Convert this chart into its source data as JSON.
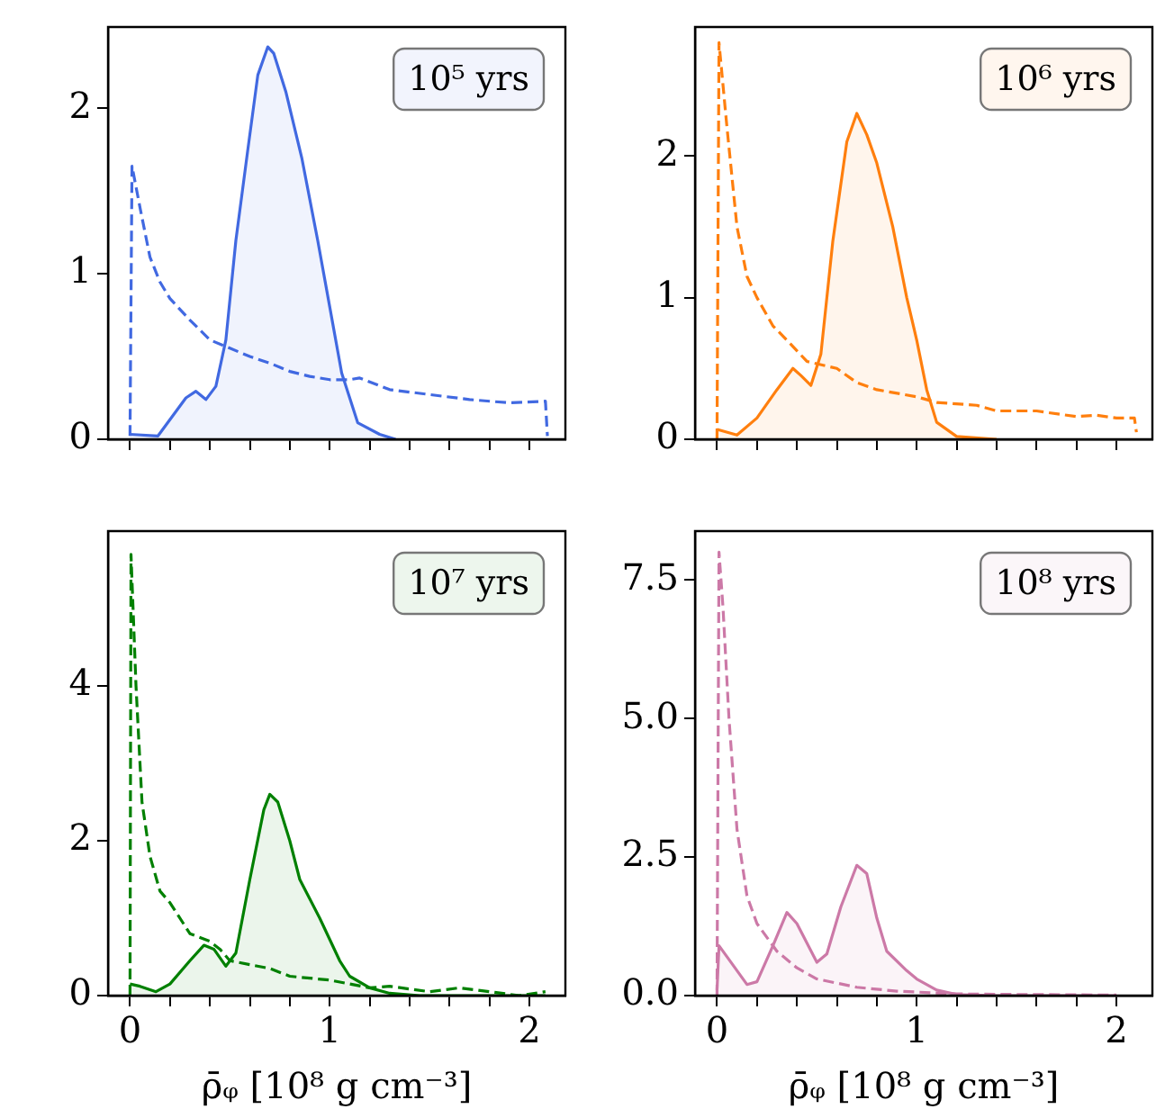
{
  "chart_data": [
    {
      "type": "area",
      "xlim": [
        -0.11,
        2.18
      ],
      "xticks": [
        0,
        {
          "value": 0.2,
          "label": null
        },
        {
          "value": 0.4,
          "label": null
        },
        {
          "value": 0.6,
          "label": null
        },
        {
          "value": 0.8,
          "label": null
        },
        1,
        {
          "value": 1.2,
          "label": null
        },
        {
          "value": 1.4,
          "label": null
        },
        {
          "value": 1.6,
          "label": null
        },
        {
          "value": 1.8,
          "label": null
        },
        2
      ],
      "ylim": [
        0,
        2.49
      ],
      "yticks": [
        0,
        1,
        2
      ],
      "tick_labels": "y",
      "annotations": [
        "10⁵ yrs"
      ],
      "series": [
        {
          "color": "#4169e1",
          "x": [
            0,
            0.14,
            0.28,
            0.33,
            0.38,
            0.43,
            0.48,
            0.53,
            0.59,
            0.64,
            0.69,
            0.72,
            0.78,
            0.86,
            0.94,
            1.0,
            1.06,
            1.14,
            1.25,
            1.33
          ],
          "values": [
            0.03,
            0.02,
            0.25,
            0.29,
            0.24,
            0.32,
            0.6,
            1.2,
            1.75,
            2.2,
            2.37,
            2.33,
            2.1,
            1.7,
            1.2,
            0.8,
            0.4,
            0.1,
            0.03,
            0.0
          ]
        },
        {
          "type": "line",
          "line_style": "dashed",
          "color": "#4169e1",
          "x": [
            0,
            0.01,
            0.05,
            0.1,
            0.15,
            0.2,
            0.3,
            0.4,
            0.5,
            0.6,
            0.7,
            0.8,
            0.9,
            1.0,
            1.1,
            1.15,
            1.3,
            1.5,
            1.7,
            1.9,
            2.08,
            2.09
          ],
          "values": [
            0.02,
            1.65,
            1.4,
            1.1,
            0.95,
            0.85,
            0.72,
            0.6,
            0.55,
            0.5,
            0.46,
            0.41,
            0.38,
            0.36,
            0.36,
            0.37,
            0.3,
            0.27,
            0.24,
            0.22,
            0.23,
            0.02
          ]
        }
      ]
    },
    {
      "type": "area",
      "xlim": [
        -0.11,
        2.18
      ],
      "xticks": [
        0,
        {
          "value": 0.2,
          "label": null
        },
        {
          "value": 0.4,
          "label": null
        },
        {
          "value": 0.6,
          "label": null
        },
        {
          "value": 0.8,
          "label": null
        },
        1,
        {
          "value": 1.2,
          "label": null
        },
        {
          "value": 1.4,
          "label": null
        },
        {
          "value": 1.6,
          "label": null
        },
        {
          "value": 1.8,
          "label": null
        },
        2
      ],
      "ylim": [
        0,
        2.91
      ],
      "yticks": [
        0,
        1,
        2
      ],
      "tick_labels": "y",
      "annotations": [
        "10⁶ yrs"
      ],
      "series": [
        {
          "color": "#ff7f0e",
          "x": [
            0,
            0.1,
            0.2,
            0.3,
            0.38,
            0.42,
            0.47,
            0.52,
            0.58,
            0.65,
            0.7,
            0.75,
            0.8,
            0.88,
            0.95,
            1.0,
            1.05,
            1.1,
            1.2,
            1.4
          ],
          "values": [
            0.07,
            0.03,
            0.15,
            0.35,
            0.5,
            0.45,
            0.38,
            0.6,
            1.4,
            2.1,
            2.3,
            2.15,
            1.95,
            1.5,
            1.0,
            0.7,
            0.35,
            0.12,
            0.02,
            0.0
          ]
        },
        {
          "type": "line",
          "line_style": "dashed",
          "color": "#ff7f0e",
          "x": [
            0,
            0.01,
            0.05,
            0.1,
            0.15,
            0.2,
            0.28,
            0.35,
            0.45,
            0.6,
            0.7,
            0.8,
            1.0,
            1.1,
            1.3,
            1.4,
            1.6,
            1.8,
            1.9,
            2.0,
            2.09,
            2.1
          ],
          "values": [
            0.0,
            2.8,
            2.2,
            1.5,
            1.15,
            1.0,
            0.8,
            0.7,
            0.55,
            0.5,
            0.4,
            0.35,
            0.3,
            0.26,
            0.24,
            0.2,
            0.2,
            0.16,
            0.17,
            0.15,
            0.15,
            0.05
          ]
        }
      ]
    },
    {
      "type": "area",
      "xlabel": "ρ̄ᵩ [10⁸ g cm⁻³]",
      "xlim": [
        -0.11,
        2.18
      ],
      "xticks": [
        0,
        {
          "value": 0.2,
          "label": null
        },
        {
          "value": 0.4,
          "label": null
        },
        {
          "value": 0.6,
          "label": null
        },
        {
          "value": 0.8,
          "label": null
        },
        1,
        {
          "value": 1.2,
          "label": null
        },
        {
          "value": 1.4,
          "label": null
        },
        {
          "value": 1.6,
          "label": null
        },
        {
          "value": 1.8,
          "label": null
        },
        2
      ],
      "ylim": [
        0,
        6.0
      ],
      "yticks": [
        0,
        2,
        4
      ],
      "annotations": [
        "10⁷ yrs"
      ],
      "series": [
        {
          "color": "#008000",
          "x": [
            0,
            0.05,
            0.13,
            0.2,
            0.3,
            0.37,
            0.42,
            0.48,
            0.53,
            0.6,
            0.67,
            0.7,
            0.74,
            0.8,
            0.85,
            0.95,
            1.05,
            1.1,
            1.2,
            1.3,
            1.45,
            2.08
          ],
          "values": [
            0.15,
            0.12,
            0.05,
            0.15,
            0.45,
            0.65,
            0.6,
            0.38,
            0.55,
            1.5,
            2.4,
            2.6,
            2.5,
            2.0,
            1.5,
            1.0,
            0.45,
            0.25,
            0.1,
            0.03,
            0.0,
            0.0
          ]
        },
        {
          "type": "line",
          "line_style": "dashed",
          "color": "#008000",
          "x": [
            0,
            0.005,
            0.03,
            0.06,
            0.1,
            0.15,
            0.2,
            0.3,
            0.4,
            0.45,
            0.5,
            0.6,
            0.7,
            0.8,
            1.0,
            1.1,
            1.2,
            1.3,
            1.5,
            1.65,
            1.8,
            1.95,
            2.08
          ],
          "values": [
            0.0,
            5.7,
            4.0,
            2.5,
            1.8,
            1.35,
            1.2,
            0.8,
            0.7,
            0.6,
            0.45,
            0.4,
            0.35,
            0.25,
            0.2,
            0.15,
            0.1,
            0.12,
            0.05,
            0.1,
            0.05,
            0.0,
            0.05
          ]
        }
      ]
    },
    {
      "type": "area",
      "xlabel": "ρ̄ᵩ [10⁸ g cm⁻³]",
      "xlim": [
        -0.11,
        2.18
      ],
      "xticks": [
        0,
        {
          "value": 0.2,
          "label": null
        },
        {
          "value": 0.4,
          "label": null
        },
        {
          "value": 0.6,
          "label": null
        },
        {
          "value": 0.8,
          "label": null
        },
        1,
        {
          "value": 1.2,
          "label": null
        },
        {
          "value": 1.4,
          "label": null
        },
        {
          "value": 1.6,
          "label": null
        },
        {
          "value": 1.8,
          "label": null
        },
        2
      ],
      "ylim": [
        0,
        8.38
      ],
      "yticks": [
        {
          "value": 0,
          "label": "0.0"
        },
        {
          "value": 2.5,
          "label": "2.5"
        },
        {
          "value": 5,
          "label": "5.0"
        },
        {
          "value": 7.5,
          "label": "7.5"
        }
      ],
      "annotations": [
        "10⁸ yrs"
      ],
      "series": [
        {
          "color": "#cc79a7",
          "x": [
            0,
            0.01,
            0.05,
            0.15,
            0.2,
            0.28,
            0.35,
            0.4,
            0.5,
            0.55,
            0.62,
            0.7,
            0.75,
            0.8,
            0.85,
            0.95,
            1.0,
            1.1,
            1.2,
            1.4,
            2.0
          ],
          "values": [
            0.1,
            0.9,
            0.7,
            0.2,
            0.25,
            0.9,
            1.5,
            1.3,
            0.6,
            0.75,
            1.6,
            2.35,
            2.2,
            1.4,
            0.8,
            0.45,
            0.3,
            0.1,
            0.02,
            0.0,
            0.0
          ]
        },
        {
          "type": "line",
          "line_style": "dashed",
          "color": "#cc79a7",
          "x": [
            0,
            0.01,
            0.03,
            0.06,
            0.1,
            0.15,
            0.2,
            0.3,
            0.4,
            0.5,
            0.7,
            0.9,
            1.2,
            1.5,
            2.0
          ],
          "values": [
            0.0,
            8.0,
            7.0,
            5.0,
            3.0,
            1.8,
            1.3,
            0.8,
            0.5,
            0.3,
            0.15,
            0.08,
            0.03,
            0.02,
            0.01
          ]
        }
      ]
    }
  ]
}
